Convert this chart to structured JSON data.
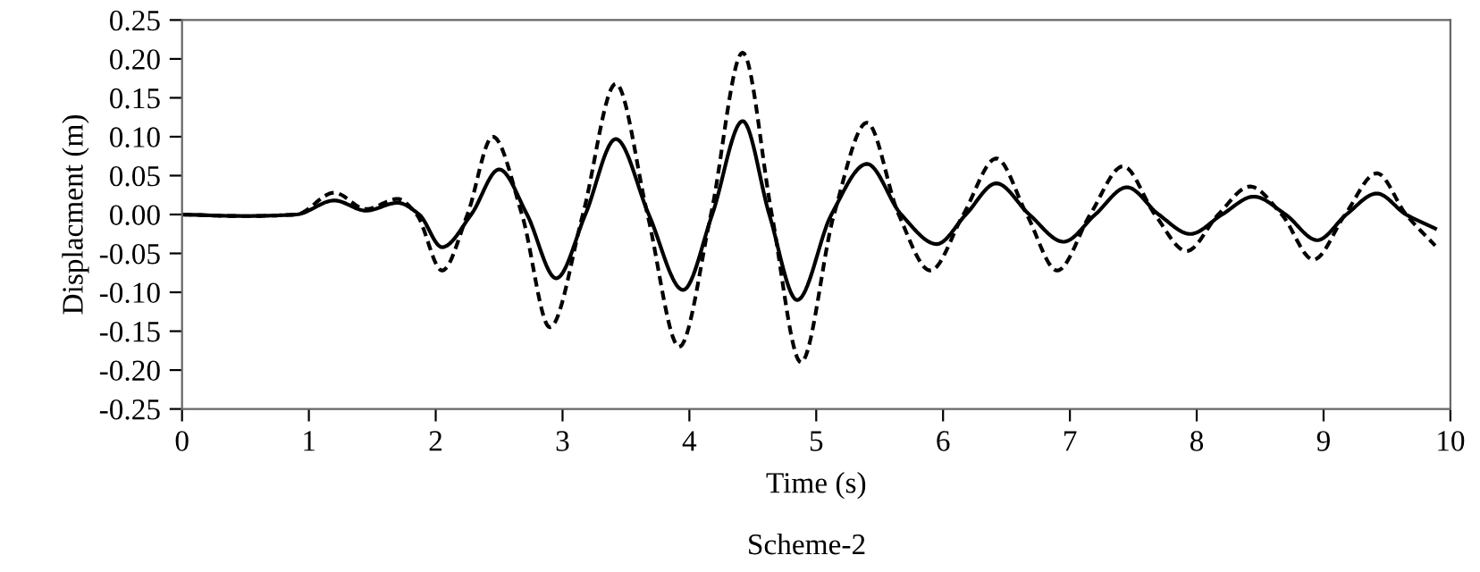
{
  "chart_data": {
    "type": "line",
    "xlabel": "Time (s)",
    "ylabel": "Displacment (m)",
    "annotations": [
      "Scheme-2"
    ],
    "xlim": [
      0,
      10
    ],
    "xticks": [
      0,
      1,
      2,
      3,
      4,
      5,
      6,
      7,
      8,
      9,
      10
    ],
    "ylim": [
      -0.25,
      0.25
    ],
    "yticks": [
      {
        "value": -0.25,
        "label": "-0.25"
      },
      {
        "value": -0.2,
        "label": "-0.20"
      },
      {
        "value": -0.15,
        "label": "-0.15"
      },
      {
        "value": -0.1,
        "label": "-0.10"
      },
      {
        "value": -0.05,
        "label": "-0.05"
      },
      {
        "value": 0,
        "label": "0.00"
      },
      {
        "value": 0.05,
        "label": "0.05"
      },
      {
        "value": 0.1,
        "label": "0.10"
      },
      {
        "value": 0.15,
        "label": "0.15"
      },
      {
        "value": 0.2,
        "label": "0.20"
      },
      {
        "value": 0.25,
        "label": "0.25"
      }
    ],
    "grid": false,
    "legend": false,
    "marker": "none",
    "series": [
      {
        "color": "#000000",
        "line_style": "dashed",
        "x": [
          0,
          0.5,
          0.9,
          1.2,
          1.45,
          1.7,
          1.85,
          2.05,
          2.25,
          2.45,
          2.68,
          2.9,
          3.16,
          3.42,
          3.67,
          3.92,
          4.17,
          4.42,
          4.65,
          4.88,
          5.14,
          5.4,
          5.65,
          5.9,
          6.16,
          6.42,
          6.66,
          6.9,
          7.16,
          7.42,
          7.67,
          7.92,
          8.17,
          8.42,
          8.67,
          8.92,
          9.17,
          9.42,
          9.65,
          9.88
        ],
        "values": [
          0,
          -0.002,
          0,
          0.028,
          0.007,
          0.02,
          0,
          -0.072,
          0,
          0.1,
          0,
          -0.145,
          0,
          0.168,
          0,
          -0.17,
          0,
          0.208,
          0,
          -0.19,
          0,
          0.118,
          0,
          -0.072,
          0,
          0.072,
          0,
          -0.072,
          0,
          0.062,
          0,
          -0.047,
          0,
          0.036,
          0,
          -0.058,
          0,
          0.053,
          0,
          -0.04
        ]
      },
      {
        "color": "#000000",
        "line_style": "solid",
        "x": [
          0,
          0.5,
          0.9,
          1.2,
          1.45,
          1.7,
          1.87,
          2.05,
          2.28,
          2.5,
          2.72,
          2.95,
          3.18,
          3.42,
          3.68,
          3.95,
          4.18,
          4.42,
          4.63,
          4.85,
          5.12,
          5.4,
          5.67,
          5.95,
          6.18,
          6.42,
          6.68,
          6.95,
          7.2,
          7.45,
          7.7,
          7.95,
          8.2,
          8.45,
          8.7,
          8.95,
          9.18,
          9.42,
          9.65,
          9.88
        ],
        "values": [
          0,
          -0.002,
          0,
          0.018,
          0.005,
          0.015,
          0,
          -0.042,
          0,
          0.058,
          0,
          -0.082,
          0,
          0.097,
          0,
          -0.097,
          0,
          0.12,
          0,
          -0.11,
          0,
          0.065,
          0,
          -0.038,
          0,
          0.04,
          0,
          -0.035,
          0,
          0.035,
          0,
          -0.025,
          0,
          0.023,
          0,
          -0.033,
          0,
          0.027,
          0,
          -0.018
        ]
      }
    ]
  }
}
